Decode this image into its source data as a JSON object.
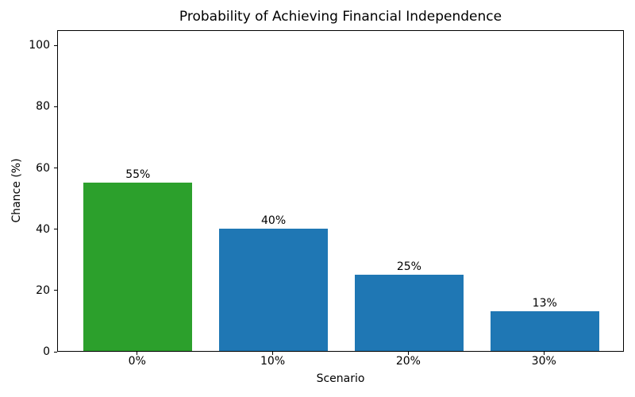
{
  "figure": {
    "background_color": "#ffffff",
    "axis_color": "#000000",
    "text_color": "#000000"
  },
  "chart_data": {
    "type": "bar",
    "title": "Probability of Achieving Financial Independence",
    "xlabel": "Scenario",
    "ylabel": "Chance (%)",
    "categories": [
      "0%",
      "10%",
      "20%",
      "30%"
    ],
    "values": [
      55,
      40,
      25,
      13
    ],
    "bar_labels": [
      "55%",
      "40%",
      "25%",
      "13%"
    ],
    "bar_colors": [
      "#2ca02c",
      "#1f77b4",
      "#1f77b4",
      "#1f77b4"
    ],
    "yticks": [
      0,
      20,
      40,
      60,
      80,
      100
    ],
    "ytick_labels": [
      "0",
      "20",
      "40",
      "60",
      "80",
      "100"
    ],
    "ylim": [
      0,
      105
    ],
    "grid": false,
    "legend_position": "none"
  }
}
